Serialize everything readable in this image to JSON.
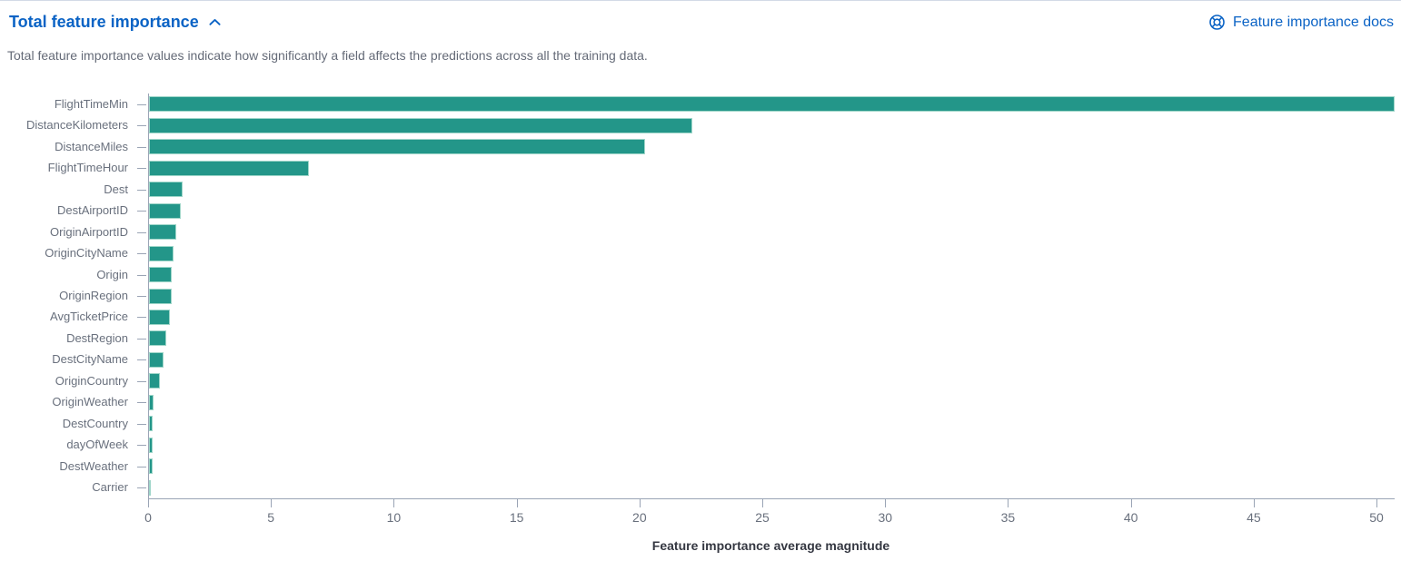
{
  "panel": {
    "title": "Total feature importance",
    "description": "Total feature importance values indicate how significantly a field affects the predictions across all the training data.",
    "docs_link_label": "Feature importance docs",
    "collapse_icon": "chevron-up-icon",
    "docs_icon": "lifebuoy-docs-icon"
  },
  "colors": {
    "link_blue": "#0b63c5",
    "bar_fill": "#239689",
    "bar_stroke": "#9fd6c9",
    "axis_line": "#9aa4b5",
    "tick_label": "#69707d",
    "category_label": "#69707d",
    "description_text": "#646a77",
    "axis_title": "#343741",
    "top_border": "#d3dae6"
  },
  "chart_data": {
    "type": "bar",
    "orientation": "horizontal",
    "title": "",
    "xlabel": "Feature importance average magnitude",
    "ylabel": "",
    "xlim": [
      0,
      50.7
    ],
    "x_ticks": [
      0,
      5,
      10,
      15,
      20,
      25,
      30,
      35,
      40,
      45,
      50
    ],
    "grid": false,
    "legend": "none",
    "categories": [
      "FlightTimeMin",
      "DistanceKilometers",
      "DistanceMiles",
      "FlightTimeHour",
      "Dest",
      "DestAirportID",
      "OriginAirportID",
      "OriginCityName",
      "Origin",
      "OriginRegion",
      "AvgTicketPrice",
      "DestRegion",
      "DestCityName",
      "OriginCountry",
      "OriginWeather",
      "DestCountry",
      "dayOfWeek",
      "DestWeather",
      "Carrier"
    ],
    "values": [
      50.7,
      22.1,
      20.2,
      6.5,
      1.38,
      1.31,
      1.1,
      1.0,
      0.94,
      0.91,
      0.86,
      0.71,
      0.6,
      0.43,
      0.18,
      0.16,
      0.15,
      0.13,
      0.05
    ]
  }
}
